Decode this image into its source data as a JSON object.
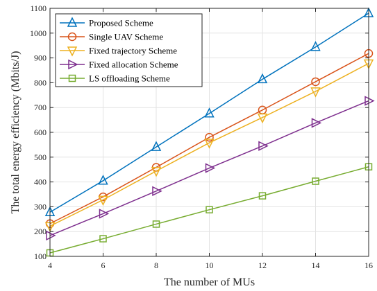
{
  "chart_data": {
    "type": "line",
    "xlabel": "The number of MUs",
    "ylabel": "The total energy efficiency (Mbits/J)",
    "x": [
      4,
      6,
      8,
      10,
      12,
      14,
      16
    ],
    "xlim": [
      4,
      16
    ],
    "ylim": [
      100,
      1100
    ],
    "xticks": [
      "4",
      "6",
      "8",
      "10",
      "12",
      "14",
      "16"
    ],
    "yticks": [
      "100",
      "200",
      "300",
      "400",
      "500",
      "600",
      "700",
      "800",
      "900",
      "1000",
      "1100"
    ],
    "grid": true,
    "legend_position": "top-left",
    "series": [
      {
        "name": "Proposed Scheme",
        "color": "#0072BD",
        "marker": "triangle-up",
        "values": [
          278,
          405,
          541,
          676,
          814,
          944,
          1080
        ]
      },
      {
        "name": "Single UAV Scheme",
        "color": "#D95319",
        "marker": "circle",
        "values": [
          232,
          340,
          459,
          580,
          690,
          804,
          918
        ]
      },
      {
        "name": "Fixed trajectory Scheme",
        "color": "#EDB120",
        "marker": "triangle-down",
        "values": [
          222,
          328,
          444,
          558,
          660,
          765,
          878
        ]
      },
      {
        "name": "Fixed allocation Scheme",
        "color": "#7E2F8E",
        "marker": "triangle-right",
        "values": [
          184,
          272,
          363,
          456,
          545,
          638,
          727
        ]
      },
      {
        "name": "LS offloading Scheme",
        "color": "#77AC30",
        "marker": "square",
        "values": [
          114,
          171,
          230,
          288,
          344,
          403,
          461
        ]
      }
    ]
  }
}
